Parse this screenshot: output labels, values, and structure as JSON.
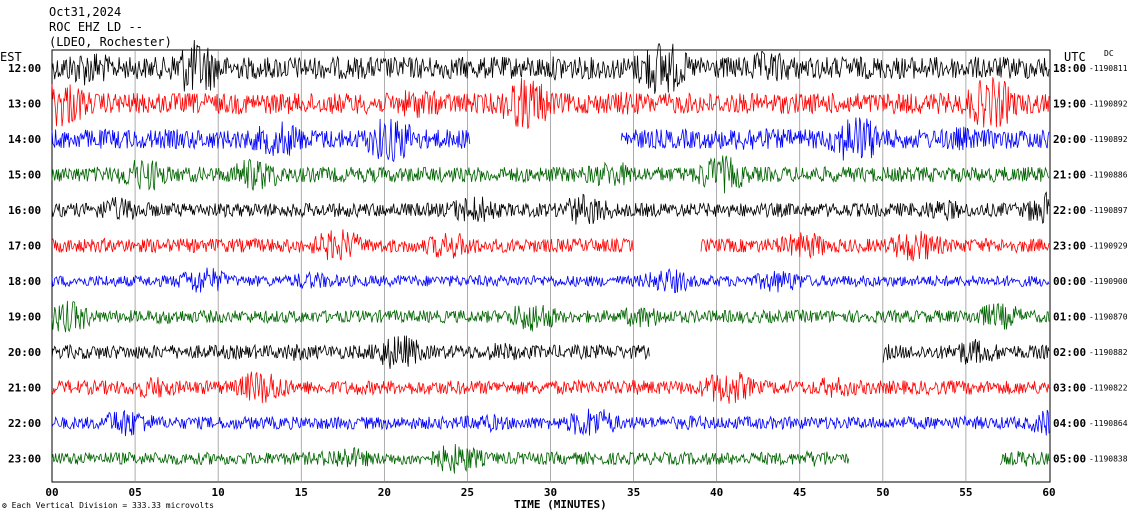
{
  "header": {
    "date": "Oct31,2024",
    "station": "ROC EHZ LD --",
    "network": "(LDEO, Rochester)"
  },
  "axes": {
    "left_tz": "EST",
    "right_tz": "UTC",
    "dc_label": "DC",
    "xlabel": "TIME (MINUTES)",
    "scale_note": "Each Vertical Division =  333.33 microvolts"
  },
  "chart_data": {
    "type": "line",
    "title": "Oct31,2024",
    "xlabel": "TIME (MINUTES)",
    "xlim": [
      0,
      60
    ],
    "x_ticks": [
      "00",
      "05",
      "10",
      "15",
      "20",
      "25",
      "30",
      "35",
      "40",
      "45",
      "50",
      "55",
      "60"
    ],
    "grid": true,
    "rows": [
      {
        "est": "12:00",
        "utc": "18:00",
        "dc": "-1190811",
        "color": "#000000",
        "amp": 1.6,
        "gaps": []
      },
      {
        "est": "13:00",
        "utc": "19:00",
        "dc": "-1190892",
        "color": "#ff0000",
        "amp": 1.5,
        "gaps": []
      },
      {
        "est": "14:00",
        "utc": "20:00",
        "dc": "-1190892",
        "color": "#0000ff",
        "amp": 1.4,
        "gaps": [
          [
            25.2,
            34.2
          ]
        ]
      },
      {
        "est": "15:00",
        "utc": "21:00",
        "dc": "-1190886",
        "color": "#006400",
        "amp": 1.1,
        "gaps": []
      },
      {
        "est": "16:00",
        "utc": "22:00",
        "dc": "-1190897",
        "color": "#000000",
        "amp": 1.0,
        "gaps": []
      },
      {
        "est": "17:00",
        "utc": "23:00",
        "dc": "-1190929",
        "color": "#ff0000",
        "amp": 1.0,
        "gaps": [
          [
            35.0,
            39.0
          ]
        ]
      },
      {
        "est": "18:00",
        "utc": "00:00",
        "dc": "-1190900",
        "color": "#0000ff",
        "amp": 0.8,
        "gaps": []
      },
      {
        "est": "19:00",
        "utc": "01:00",
        "dc": "-1190870",
        "color": "#006400",
        "amp": 0.9,
        "gaps": []
      },
      {
        "est": "20:00",
        "utc": "02:00",
        "dc": "-1190882",
        "color": "#000000",
        "amp": 1.0,
        "gaps": [
          [
            36.0,
            50.0
          ]
        ]
      },
      {
        "est": "21:00",
        "utc": "03:00",
        "dc": "-1190822",
        "color": "#ff0000",
        "amp": 1.0,
        "gaps": []
      },
      {
        "est": "22:00",
        "utc": "04:00",
        "dc": "-1190864",
        "color": "#0000ff",
        "amp": 0.9,
        "gaps": []
      },
      {
        "est": "23:00",
        "utc": "05:00",
        "dc": "-1190838",
        "color": "#006400",
        "amp": 0.9,
        "gaps": [
          [
            48.0,
            57.0
          ]
        ]
      }
    ]
  }
}
